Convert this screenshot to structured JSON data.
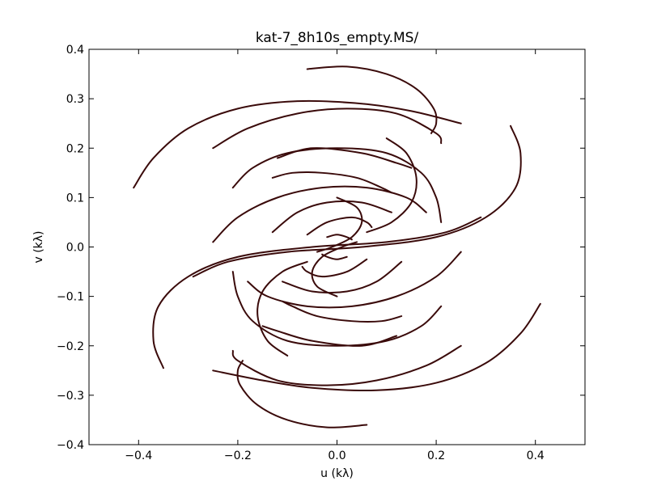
{
  "chart_data": {
    "type": "scatter",
    "title": "kat-7_8h10s_empty.MS/",
    "xlabel": "u (kλ)",
    "ylabel": "v (kλ)",
    "xlim": [
      -0.5,
      0.5
    ],
    "ylim": [
      -0.4,
      0.4
    ],
    "xticks": [
      -0.4,
      -0.2,
      0.0,
      0.2,
      0.4
    ],
    "xtick_labels": [
      "−0.4",
      "−0.2",
      "0.0",
      "0.2",
      "0.4"
    ],
    "yticks": [
      -0.4,
      -0.3,
      -0.2,
      -0.1,
      0.0,
      0.1,
      0.2,
      0.3,
      0.4
    ],
    "ytick_labels": [
      "−0.4",
      "−0.3",
      "−0.2",
      "−0.1",
      "0.0",
      "0.1",
      "0.2",
      "0.3",
      "0.4"
    ],
    "grid": false,
    "legend": "none",
    "series_color": "#3a0a0a",
    "tracks": [
      {
        "u": [
          -0.41,
          -0.37,
          -0.3,
          -0.2,
          -0.08,
          0.05,
          0.15,
          0.25
        ],
        "v": [
          0.12,
          0.18,
          0.24,
          0.28,
          0.295,
          0.29,
          0.275,
          0.25
        ]
      },
      {
        "u": [
          0.41,
          0.37,
          0.3,
          0.2,
          0.08,
          -0.05,
          -0.15,
          -0.25
        ],
        "v": [
          -0.115,
          -0.175,
          -0.235,
          -0.275,
          -0.29,
          -0.285,
          -0.27,
          -0.25
        ]
      },
      {
        "u": [
          -0.25,
          -0.18,
          -0.08,
          0.02,
          0.12,
          0.2,
          0.21
        ],
        "v": [
          0.2,
          0.24,
          0.27,
          0.28,
          0.27,
          0.23,
          0.21
        ]
      },
      {
        "u": [
          0.25,
          0.18,
          0.08,
          -0.02,
          -0.12,
          -0.2,
          -0.21
        ],
        "v": [
          -0.2,
          -0.24,
          -0.27,
          -0.28,
          -0.27,
          -0.23,
          -0.21
        ]
      },
      {
        "u": [
          -0.06,
          0.02,
          0.1,
          0.16,
          0.195,
          0.2,
          0.19
        ],
        "v": [
          0.36,
          0.365,
          0.35,
          0.32,
          0.28,
          0.25,
          0.23
        ]
      },
      {
        "u": [
          0.06,
          -0.02,
          -0.1,
          -0.16,
          -0.195,
          -0.2,
          -0.19
        ],
        "v": [
          -0.36,
          -0.365,
          -0.35,
          -0.32,
          -0.28,
          -0.25,
          -0.23
        ]
      },
      {
        "u": [
          0.35,
          0.37,
          0.36,
          0.3,
          0.2,
          0.05,
          -0.1,
          -0.22,
          -0.29
        ],
        "v": [
          0.245,
          0.19,
          0.12,
          0.06,
          0.02,
          0.0,
          -0.01,
          -0.03,
          -0.06
        ]
      },
      {
        "u": [
          -0.35,
          -0.37,
          -0.36,
          -0.3,
          -0.2,
          -0.05,
          0.1,
          0.22,
          0.29
        ],
        "v": [
          -0.245,
          -0.19,
          -0.12,
          -0.06,
          -0.02,
          0.0,
          0.01,
          0.03,
          0.06
        ]
      },
      {
        "u": [
          -0.21,
          -0.17,
          -0.1,
          0.0,
          0.1,
          0.17,
          0.2,
          0.21
        ],
        "v": [
          0.12,
          0.16,
          0.19,
          0.2,
          0.19,
          0.15,
          0.1,
          0.05
        ]
      },
      {
        "u": [
          0.21,
          0.17,
          0.1,
          0.0,
          -0.1,
          -0.17,
          -0.2,
          -0.21
        ],
        "v": [
          -0.12,
          -0.16,
          -0.19,
          -0.2,
          -0.19,
          -0.15,
          -0.1,
          -0.05
        ]
      },
      {
        "u": [
          -0.12,
          -0.05,
          0.05,
          0.12,
          0.15
        ],
        "v": [
          0.18,
          0.2,
          0.19,
          0.17,
          0.16
        ]
      },
      {
        "u": [
          0.12,
          0.05,
          -0.05,
          -0.12,
          -0.15
        ],
        "v": [
          -0.18,
          -0.2,
          -0.19,
          -0.17,
          -0.16
        ]
      },
      {
        "u": [
          -0.25,
          -0.2,
          -0.12,
          -0.03,
          0.06,
          0.14,
          0.18
        ],
        "v": [
          0.01,
          0.06,
          0.1,
          0.12,
          0.12,
          0.1,
          0.07
        ]
      },
      {
        "u": [
          0.25,
          0.2,
          0.12,
          0.03,
          -0.06,
          -0.14,
          -0.18
        ],
        "v": [
          -0.01,
          -0.06,
          -0.1,
          -0.12,
          -0.12,
          -0.1,
          -0.07
        ]
      },
      {
        "u": [
          -0.13,
          -0.08,
          -0.02,
          0.05,
          0.11
        ],
        "v": [
          0.03,
          0.07,
          0.09,
          0.09,
          0.07
        ]
      },
      {
        "u": [
          0.13,
          0.08,
          0.02,
          -0.05,
          -0.11
        ],
        "v": [
          -0.03,
          -0.07,
          -0.09,
          -0.09,
          -0.07
        ]
      },
      {
        "u": [
          0.1,
          0.14,
          0.16,
          0.15,
          0.11,
          0.06
        ],
        "v": [
          0.22,
          0.19,
          0.14,
          0.09,
          0.05,
          0.03
        ]
      },
      {
        "u": [
          -0.1,
          -0.14,
          -0.16,
          -0.15,
          -0.11,
          -0.06
        ],
        "v": [
          -0.22,
          -0.19,
          -0.14,
          -0.09,
          -0.05,
          -0.03
        ]
      },
      {
        "u": [
          -0.06,
          -0.02,
          0.03,
          0.06,
          0.07
        ],
        "v": [
          0.025,
          0.05,
          0.06,
          0.05,
          0.04
        ]
      },
      {
        "u": [
          0.06,
          0.02,
          -0.03,
          -0.06,
          -0.07
        ],
        "v": [
          -0.025,
          -0.05,
          -0.06,
          -0.05,
          -0.04
        ]
      },
      {
        "u": [
          0.0,
          0.04,
          0.05,
          0.03,
          -0.01,
          -0.04
        ],
        "v": [
          0.1,
          0.08,
          0.05,
          0.02,
          0.0,
          -0.01
        ]
      },
      {
        "u": [
          0.0,
          -0.04,
          -0.05,
          -0.03,
          0.01,
          0.04
        ],
        "v": [
          -0.1,
          -0.08,
          -0.05,
          -0.02,
          0.0,
          0.01
        ]
      },
      {
        "u": [
          -0.02,
          0.0,
          0.02,
          0.03
        ],
        "v": [
          0.02,
          0.025,
          0.02,
          0.015
        ]
      },
      {
        "u": [
          0.02,
          0.0,
          -0.02,
          -0.03
        ],
        "v": [
          -0.02,
          -0.025,
          -0.02,
          -0.015
        ]
      },
      {
        "u": [
          -0.13,
          -0.09,
          -0.03,
          0.04,
          0.09,
          0.11
        ],
        "v": [
          0.14,
          0.15,
          0.15,
          0.14,
          0.12,
          0.11
        ]
      },
      {
        "u": [
          0.13,
          0.09,
          0.03,
          -0.04,
          -0.09,
          -0.11
        ],
        "v": [
          -0.14,
          -0.15,
          -0.15,
          -0.14,
          -0.12,
          -0.11
        ]
      }
    ]
  }
}
